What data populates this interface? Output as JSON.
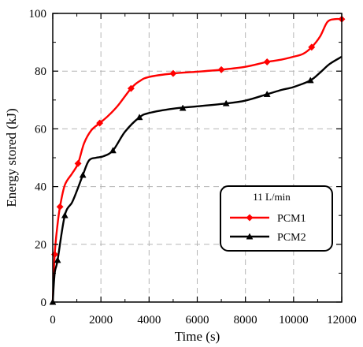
{
  "chart_data": {
    "type": "line",
    "xlabel": "Time (s)",
    "ylabel": "Energy stored (kJ)",
    "xlim": [
      0,
      12000
    ],
    "ylim": [
      0,
      100
    ],
    "xticks": [
      0,
      2000,
      4000,
      6000,
      8000,
      10000,
      12000
    ],
    "yticks": [
      0,
      20,
      40,
      60,
      80,
      100
    ],
    "grid": true,
    "legend": {
      "title": "11 L/min",
      "placement": "lower-right"
    },
    "series": [
      {
        "name": "PCM1",
        "color": "#ff0000",
        "marker": "diamond",
        "x": [
          0,
          80,
          200,
          300,
          500,
          800,
          1050,
          1300,
          1600,
          1950,
          2300,
          2700,
          3250,
          3600,
          4000,
          5000,
          6000,
          7000,
          8000,
          8900,
          9500,
          10000,
          10400,
          10750,
          11100,
          11400,
          11700,
          12000
        ],
        "y": [
          0,
          16.5,
          27,
          33,
          40.5,
          44.5,
          48,
          55,
          59.5,
          62,
          64.5,
          68,
          74,
          76.5,
          78,
          79.2,
          79.8,
          80.5,
          81.5,
          83.2,
          84,
          85,
          86,
          88.3,
          92,
          97,
          98,
          98
        ],
        "markers_x": [
          80,
          300,
          1050,
          1950,
          3250,
          5000,
          7000,
          8900,
          10750,
          12000
        ],
        "markers_y": [
          16.5,
          33,
          48,
          62,
          74,
          79.2,
          80.5,
          83.2,
          88.3,
          98
        ]
      },
      {
        "name": "PCM2",
        "color": "#000000",
        "marker": "triangle",
        "x": [
          0,
          80,
          200,
          500,
          800,
          1000,
          1250,
          1500,
          1800,
          2100,
          2500,
          3000,
          3600,
          4000,
          5000,
          6000,
          7200,
          8000,
          8900,
          9500,
          10000,
          10700,
          11100,
          11500,
          12000
        ],
        "y": [
          0,
          10,
          14.5,
          30,
          34.5,
          38.5,
          44,
          49,
          50,
          50.5,
          52.5,
          59,
          64,
          65.5,
          67,
          67.8,
          68.8,
          69.8,
          72,
          73.5,
          74.5,
          76.8,
          79.5,
          82.5,
          85
        ],
        "markers_x": [
          0,
          200,
          500,
          1250,
          2500,
          3600,
          5400,
          7200,
          8900,
          10700
        ],
        "markers_y": [
          0,
          14.5,
          30,
          44,
          52.5,
          64,
          67.2,
          68.8,
          72,
          76.8
        ]
      }
    ]
  }
}
